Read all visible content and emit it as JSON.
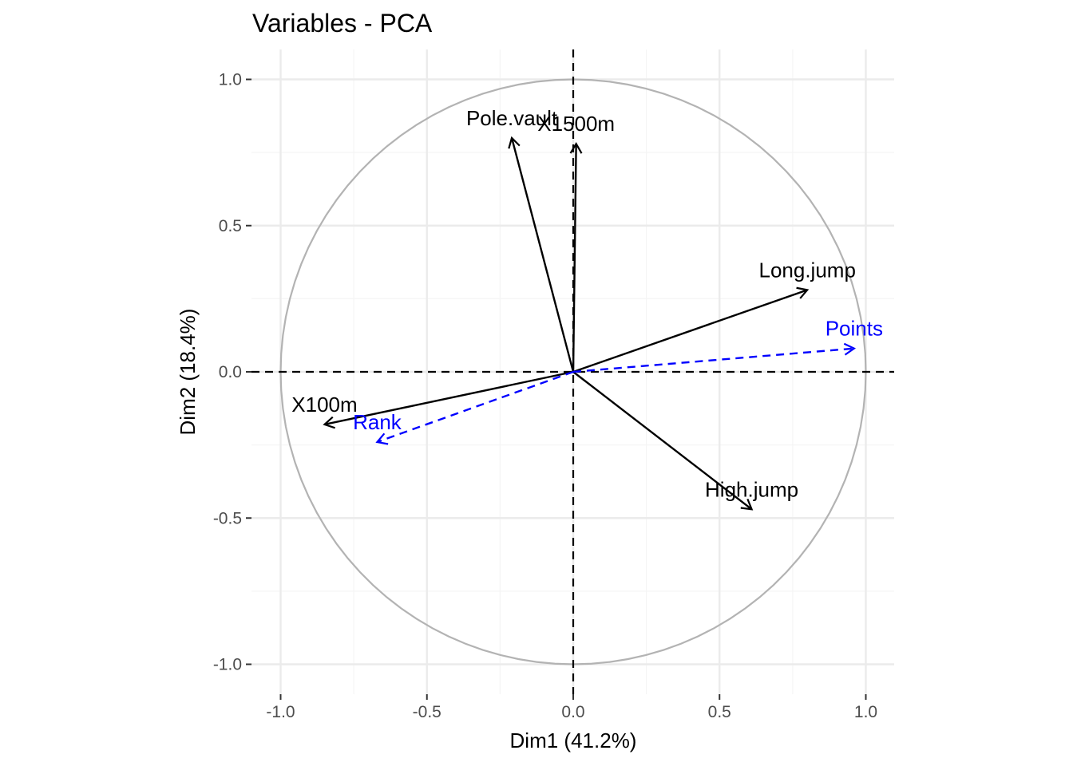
{
  "chart_data": {
    "type": "scatter",
    "title": "Variables - PCA",
    "xlabel": "Dim1 (41.2%)",
    "ylabel": "Dim2 (18.4%)",
    "xlim": [
      -1.0,
      1.0
    ],
    "ylim": [
      -1.0,
      1.0
    ],
    "x_ticks": [
      "-1.0",
      "-0.5",
      "0.0",
      "0.5",
      "1.0"
    ],
    "y_ticks": [
      "1.0",
      "0.5",
      "0.0",
      "-0.5",
      "-1.0"
    ],
    "grid": true,
    "unit_circle": true,
    "variables": [
      {
        "name": "X100m",
        "x": -0.85,
        "y": -0.18,
        "style": "solid",
        "color": "#000000"
      },
      {
        "name": "Long.jump",
        "x": 0.8,
        "y": 0.28,
        "style": "solid",
        "color": "#000000"
      },
      {
        "name": "High.jump",
        "x": 0.61,
        "y": -0.47,
        "style": "solid",
        "color": "#000000"
      },
      {
        "name": "Pole.vault",
        "x": -0.21,
        "y": 0.8,
        "style": "solid",
        "color": "#000000"
      },
      {
        "name": "X1500m",
        "x": 0.01,
        "y": 0.78,
        "style": "solid",
        "color": "#000000"
      },
      {
        "name": "Rank",
        "x": -0.67,
        "y": -0.24,
        "style": "dashed",
        "color": "#0000ff"
      },
      {
        "name": "Points",
        "x": 0.96,
        "y": 0.08,
        "style": "dashed",
        "color": "#0000ff"
      }
    ]
  },
  "colors": {
    "grid_major": "#ebebeb",
    "grid_minor": "#f5f5f5",
    "circle": "#b3b3b3",
    "reference_lines": "#000000",
    "active_variables": "#000000",
    "supplementary_variables": "#0000ff"
  }
}
